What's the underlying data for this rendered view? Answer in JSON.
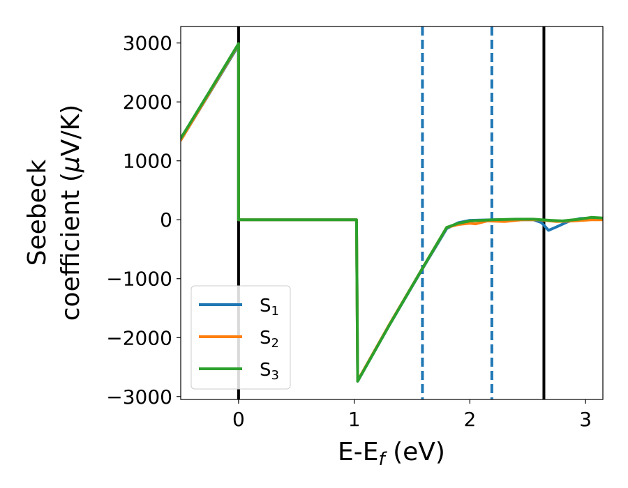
{
  "chart_data": {
    "type": "line",
    "xlabel": {
      "main": "E-E",
      "sub": "f",
      "rest": " (eV)"
    },
    "ylabel": {
      "line1": "Seebeck",
      "line2_main": "coefficient  (",
      "line2_mu": "μ",
      "line2_rest": "V/K)"
    },
    "xlim": [
      -0.5,
      3.15
    ],
    "ylim": [
      -3050,
      3280
    ],
    "xticks": [
      {
        "value": 0,
        "label": "0"
      },
      {
        "value": 1,
        "label": "1"
      },
      {
        "value": 2,
        "label": "2"
      },
      {
        "value": 3,
        "label": "3"
      }
    ],
    "yticks": [
      {
        "value": 3000,
        "label": "3000"
      },
      {
        "value": 2000,
        "label": "2000"
      },
      {
        "value": 1000,
        "label": "1000"
      },
      {
        "value": 0,
        "label": "0"
      },
      {
        "value": -1000,
        "label": "−1000"
      },
      {
        "value": -2000,
        "label": "−2000"
      },
      {
        "value": -3000,
        "label": "−3000"
      }
    ],
    "vlines": [
      {
        "x": 0,
        "style": "solid",
        "color": "#000000"
      },
      {
        "x": 2.64,
        "style": "solid",
        "color": "#000000"
      },
      {
        "x": 1.59,
        "style": "dashed",
        "color": "#1f77b4"
      },
      {
        "x": 2.19,
        "style": "dashed",
        "color": "#1f77b4"
      }
    ],
    "legend_position": "lower-left",
    "series": [
      {
        "name": "S",
        "sub": "1",
        "color": "#1f77b4",
        "x": [
          -0.5,
          -0.25,
          0.0,
          0.0,
          0.5,
          1.02,
          1.03,
          1.3,
          1.6,
          1.8,
          1.9,
          2.0,
          2.2,
          2.4,
          2.55,
          2.62,
          2.68,
          2.75,
          2.85,
          2.95,
          3.05,
          3.15
        ],
        "y": [
          1350,
          2150,
          2960,
          0,
          0,
          0,
          -2740,
          -1800,
          -800,
          -150,
          -50,
          -10,
          0,
          0,
          0,
          -50,
          -180,
          -120,
          -30,
          20,
          30,
          10
        ]
      },
      {
        "name": "S",
        "sub": "2",
        "color": "#ff7f0e",
        "x": [
          -0.5,
          -0.25,
          0.0,
          0.0,
          0.5,
          1.02,
          1.03,
          1.3,
          1.6,
          1.8,
          1.9,
          2.0,
          2.05,
          2.15,
          2.3,
          2.45,
          2.6,
          2.75,
          2.9,
          3.05,
          3.15
        ],
        "y": [
          1350,
          2160,
          2980,
          0,
          0,
          0,
          -2730,
          -1790,
          -790,
          -130,
          -80,
          -60,
          -70,
          -20,
          -30,
          0,
          0,
          -30,
          -20,
          0,
          0
        ]
      },
      {
        "name": "S",
        "sub": "3",
        "color": "#2ca02c",
        "x": [
          -0.5,
          -0.25,
          0.0,
          0.0,
          0.5,
          1.02,
          1.03,
          1.3,
          1.6,
          1.8,
          1.9,
          2.0,
          2.2,
          2.4,
          2.55,
          2.62,
          2.7,
          2.8,
          2.95,
          3.05,
          3.15
        ],
        "y": [
          1380,
          2180,
          2990,
          0,
          0,
          0,
          -2740,
          -1800,
          -790,
          -130,
          -60,
          -20,
          0,
          10,
          10,
          0,
          -10,
          -20,
          10,
          40,
          30
        ]
      }
    ]
  }
}
